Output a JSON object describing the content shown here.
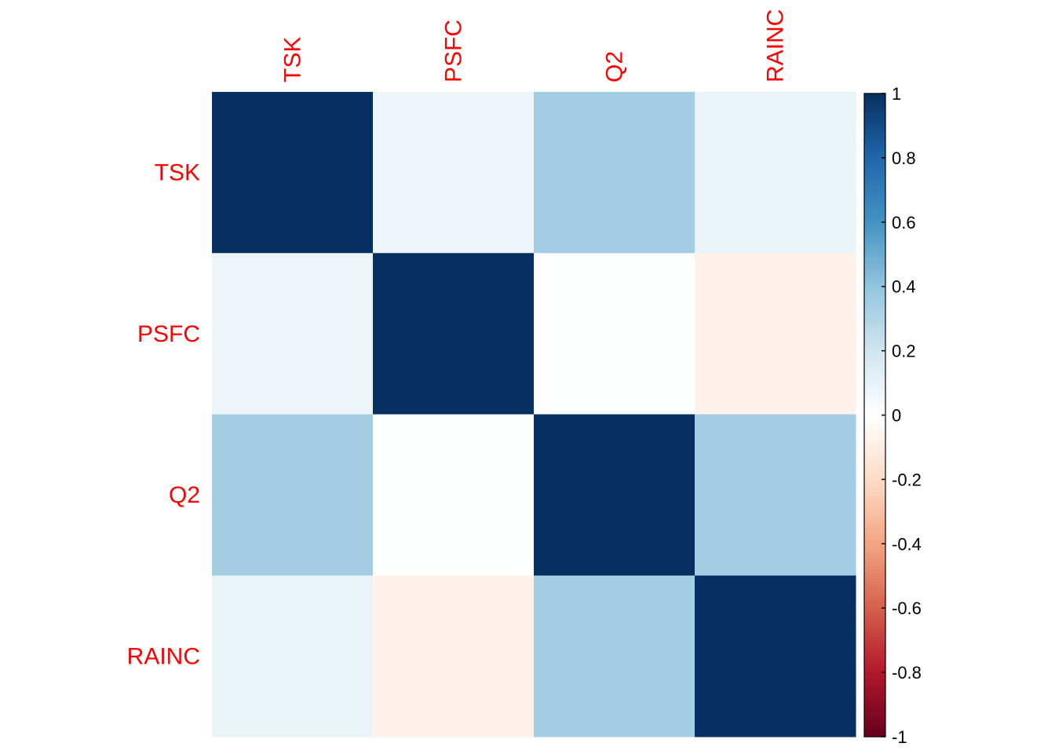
{
  "chart_data": {
    "type": "heatmap",
    "variables": [
      "TSK",
      "PSFC",
      "Q2",
      "RAINC"
    ],
    "matrix": [
      [
        1.0,
        0.08,
        0.35,
        0.09
      ],
      [
        0.08,
        1.0,
        0.01,
        -0.07
      ],
      [
        0.35,
        0.01,
        1.0,
        0.35
      ],
      [
        0.09,
        -0.07,
        0.35,
        1.0
      ]
    ],
    "colorbar": {
      "min": -1,
      "max": 1,
      "ticks": [
        1,
        0.8,
        0.6,
        0.4,
        0.2,
        0,
        -0.2,
        -0.4,
        -0.6,
        -0.8,
        -1
      ],
      "tick_labels": [
        "1",
        "0.8",
        "0.6",
        "0.4",
        "0.2",
        "0",
        "-0.2",
        "-0.4",
        "-0.6",
        "-0.8",
        "-1"
      ]
    },
    "label_color": "#ff0000",
    "palette": [
      "#67001F",
      "#B2182B",
      "#D6604D",
      "#F4A582",
      "#FDDBC7",
      "#FFFFFF",
      "#D1E5F0",
      "#92C5DE",
      "#4393C3",
      "#2166AC",
      "#053061"
    ],
    "legend_position": "right"
  }
}
